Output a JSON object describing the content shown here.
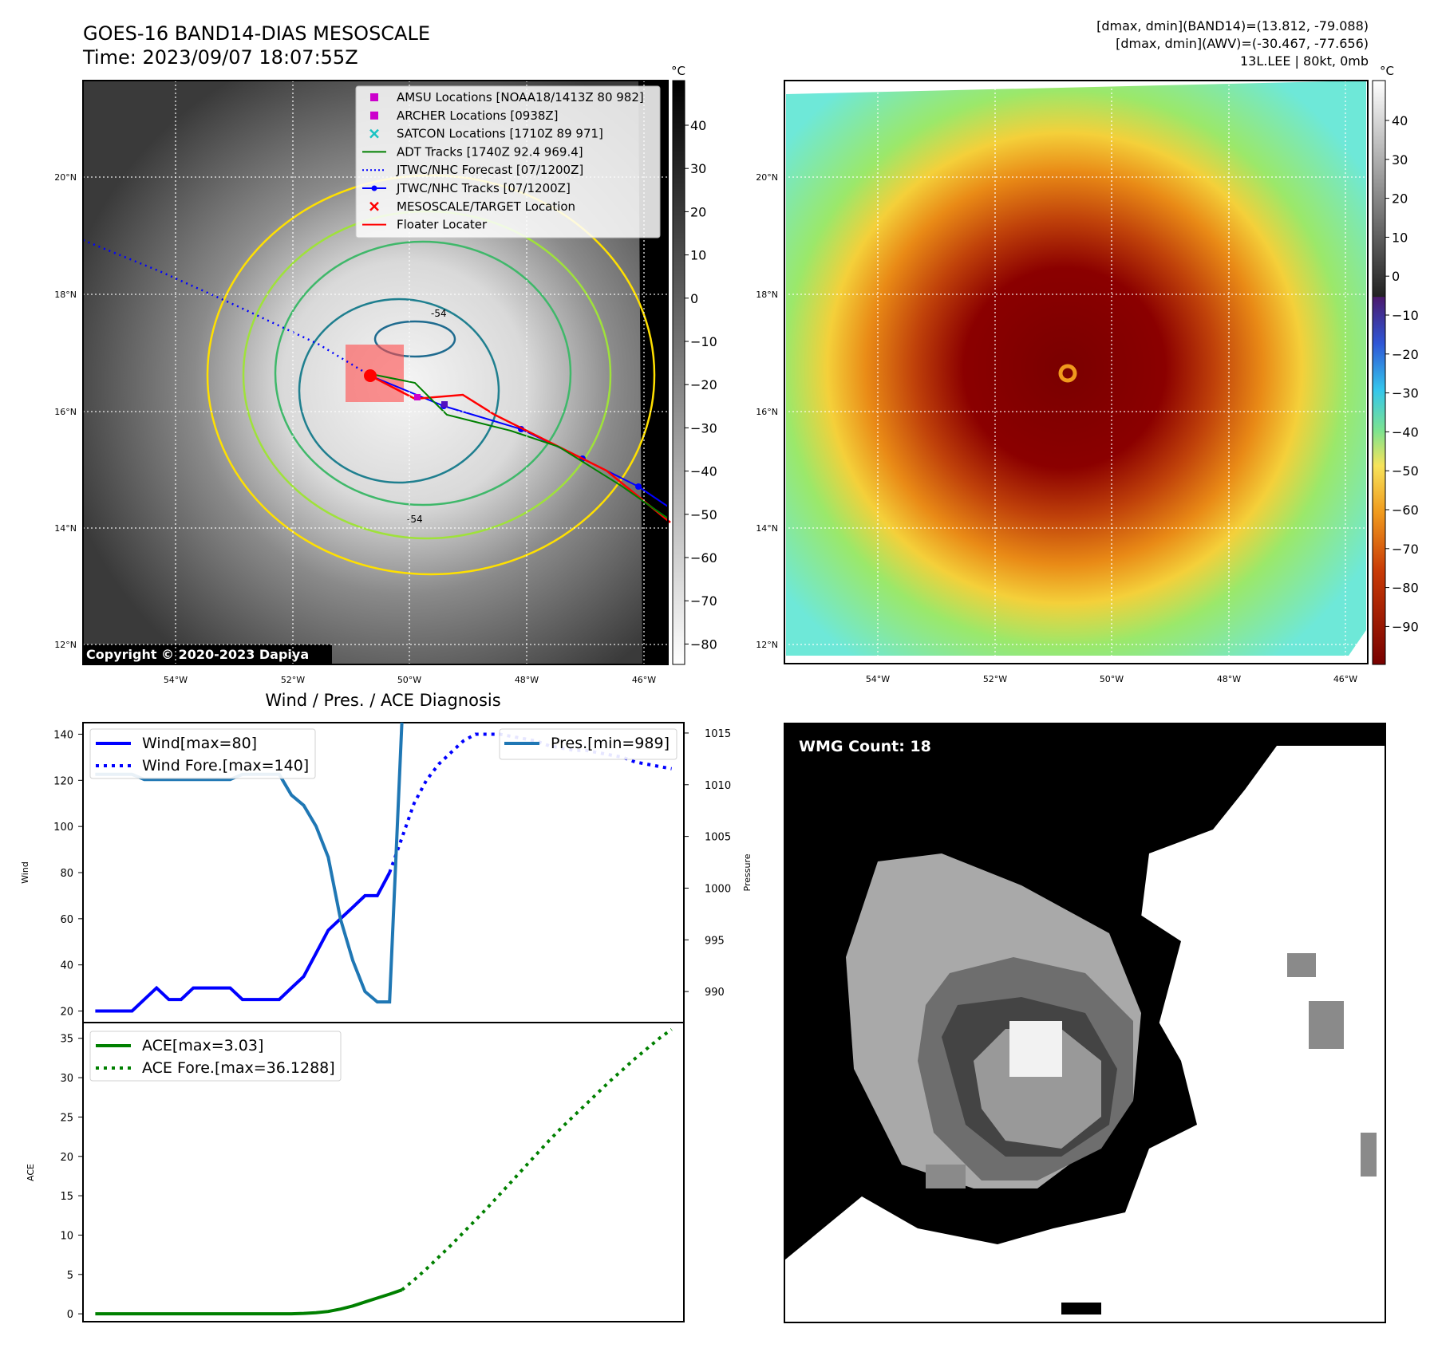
{
  "header": {
    "title": "GOES-16 BAND14-DIAS MESOSCALE",
    "time": "Time: 2023/09/07 18:07:55Z",
    "dmax_band14": "[dmax, dmin](BAND14)=(13.812, -79.088)",
    "dmax_awv": "[dmax, dmin](AWV)=(-30.467, -77.656)",
    "storm": "13L.LEE | 80kt, 0mb"
  },
  "copyright": "Copyright © 2020-2023 Dapiya",
  "colorbar_unit": "°C",
  "map_left": {
    "lat_labels": [
      "20°N",
      "18°N",
      "16°N",
      "14°N",
      "12°N"
    ],
    "lon_labels": [
      "54°W",
      "52°W",
      "50°W",
      "48°W",
      "46°W"
    ],
    "colorbar_ticks": [
      "40",
      "30",
      "20",
      "10",
      "0",
      "−10",
      "−20",
      "−30",
      "−40",
      "−50",
      "−60",
      "−70",
      "−80"
    ],
    "contour_labels": [
      "-54",
      "-54"
    ],
    "legend": [
      {
        "label": "AMSU Locations [NOAA18/1413Z 80 982]",
        "marker": "square",
        "color": "#cc00cc"
      },
      {
        "label": "ARCHER Locations [0938Z]",
        "marker": "square",
        "color": "#cc00cc"
      },
      {
        "label": "SATCON Locations [1710Z 89 971]",
        "marker": "x",
        "color": "#19c3c3"
      },
      {
        "label": "ADT Tracks [1740Z 92.4 969.4]",
        "marker": "line",
        "color": "#008000"
      },
      {
        "label": "JTWC/NHC Forecast [07/1200Z]",
        "marker": "dotted",
        "color": "#0000ff"
      },
      {
        "label": "JTWC/NHC Tracks [07/1200Z]",
        "marker": "line-dot",
        "color": "#0000ff"
      },
      {
        "label": "MESOSCALE/TARGET Location",
        "marker": "x",
        "color": "#ff0000"
      },
      {
        "label": "Floater Locater",
        "marker": "line",
        "color": "#ff0000"
      }
    ]
  },
  "map_right": {
    "lat_labels": [
      "20°N",
      "18°N",
      "16°N",
      "14°N",
      "12°N"
    ],
    "lon_labels": [
      "54°W",
      "52°W",
      "50°W",
      "48°W",
      "46°W"
    ],
    "colorbar_ticks": [
      "40",
      "30",
      "20",
      "10",
      "0",
      "−10",
      "−20",
      "−30",
      "−40",
      "−50",
      "−60",
      "−70",
      "−80",
      "−90"
    ]
  },
  "wmg": {
    "label": "WMG Count: 18"
  },
  "chart_data": [
    {
      "type": "line",
      "title": "Wind / Pres. / ACE Diagnosis",
      "ylabel": "Wind",
      "y2label": "Pressure",
      "ylim": [
        15,
        145
      ],
      "y2lim": [
        987,
        1016
      ],
      "yticks": [
        20,
        40,
        60,
        80,
        100,
        120,
        140
      ],
      "y2ticks": [
        990,
        995,
        1000,
        1005,
        1010,
        1015
      ],
      "series": [
        {
          "name": "Wind[max=80]",
          "axis": "left",
          "style": "solid",
          "color": "#0000ff",
          "x": [
            0,
            1,
            2,
            3,
            4,
            5,
            6,
            7,
            8,
            9,
            10,
            11,
            12,
            13,
            14,
            15,
            16,
            17,
            18,
            19,
            20,
            21,
            22,
            23,
            24,
            25,
            26
          ],
          "y": [
            20,
            20,
            20,
            20,
            25,
            30,
            25,
            25,
            30,
            30,
            30,
            30,
            25,
            25,
            25,
            25,
            30,
            35,
            45,
            55,
            60,
            65,
            70,
            70,
            80,
            null,
            null
          ]
        },
        {
          "name": "Wind Fore.[max=140]",
          "axis": "left",
          "style": "dotted",
          "color": "#0000ff",
          "x": [
            24,
            25,
            26,
            27,
            28,
            29,
            30,
            31,
            32,
            33,
            34,
            35,
            36,
            37,
            38,
            39,
            40,
            41,
            42,
            43,
            44,
            45,
            46,
            47
          ],
          "y": [
            80,
            95,
            110,
            120,
            127,
            132,
            137,
            140,
            140,
            140,
            139,
            138,
            137,
            135,
            134,
            133,
            133,
            132,
            131,
            130,
            128,
            127,
            126,
            125
          ]
        },
        {
          "name": "Pres.[min=989]",
          "axis": "right",
          "style": "solid",
          "color": "#1f77b4",
          "x": [
            0,
            1,
            2,
            3,
            4,
            5,
            6,
            7,
            8,
            9,
            10,
            11,
            12,
            13,
            14,
            15,
            16,
            17,
            18,
            19,
            20,
            21,
            22,
            23,
            24,
            25
          ],
          "y": [
            1011,
            1011,
            1011,
            1011,
            1010.5,
            1010.5,
            1010.5,
            1010.5,
            1010.5,
            1010.5,
            1010.5,
            1010.5,
            1011,
            1011,
            1011,
            1011,
            1009,
            1008,
            1006,
            1003,
            997,
            993,
            990,
            989,
            989,
            1016
          ]
        }
      ]
    },
    {
      "type": "line",
      "ylabel": "ACE",
      "ylim": [
        -1,
        37
      ],
      "yticks": [
        0,
        5,
        10,
        15,
        20,
        25,
        30,
        35
      ],
      "series": [
        {
          "name": "ACE[max=3.03]",
          "style": "solid",
          "color": "#008000",
          "x": [
            0,
            2,
            4,
            6,
            8,
            10,
            12,
            14,
            16,
            17,
            18,
            19,
            20,
            21,
            22,
            23,
            24,
            25
          ],
          "y": [
            0,
            0,
            0,
            0,
            0,
            0,
            0,
            0,
            0,
            0.05,
            0.15,
            0.3,
            0.6,
            1.0,
            1.5,
            2.0,
            2.5,
            3.03
          ]
        },
        {
          "name": "ACE Fore.[max=36.1288]",
          "style": "dotted",
          "color": "#008000",
          "x": [
            25,
            26,
            27,
            28,
            29,
            30,
            31,
            32,
            33,
            34,
            35,
            36,
            37,
            38,
            39,
            40,
            41,
            42,
            43,
            44,
            45,
            46,
            47
          ],
          "y": [
            3.03,
            4.3,
            5.7,
            7.2,
            8.7,
            10.3,
            11.9,
            13.5,
            15.2,
            16.9,
            18.6,
            20.3,
            22.0,
            23.6,
            25.1,
            26.6,
            28.1,
            29.6,
            31.0,
            32.4,
            33.7,
            35.0,
            36.1288
          ]
        }
      ]
    }
  ]
}
